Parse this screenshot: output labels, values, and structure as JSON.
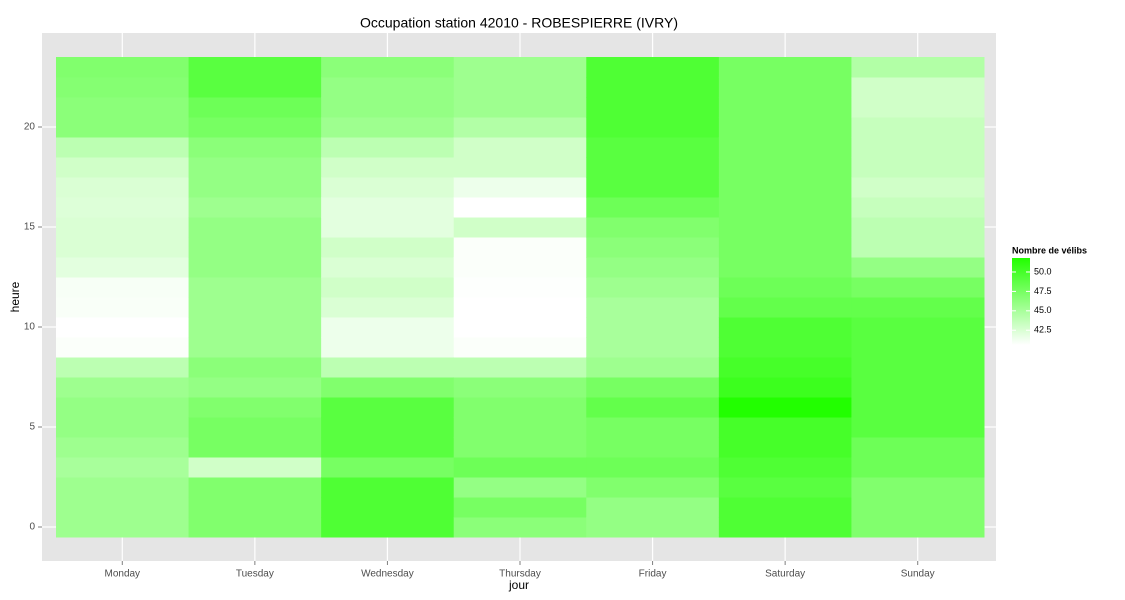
{
  "chart_data": {
    "type": "heatmap",
    "title": "Occupation station 42010 - ROBESPIERRE (IVRY)",
    "x_label": "jour",
    "y_label": "heure",
    "categories": [
      "Monday",
      "Tuesday",
      "Wednesday",
      "Thursday",
      "Friday",
      "Saturday",
      "Sunday"
    ],
    "y": [
      0,
      1,
      2,
      3,
      4,
      5,
      6,
      7,
      8,
      9,
      10,
      11,
      12,
      13,
      14,
      15,
      16,
      17,
      18,
      19,
      20,
      21,
      22,
      23
    ],
    "values": [
      [
        45.5,
        45.5,
        45.5,
        45,
        45.5,
        46,
        46,
        45.5,
        44,
        40.8,
        40.6,
        40.9,
        41,
        42,
        42.5,
        42.5,
        42.3,
        42.5,
        43,
        44,
        46.5,
        46.5,
        46.8,
        47
      ],
      [
        47,
        47,
        47,
        43,
        47.5,
        47.5,
        47,
        46,
        46.5,
        45.5,
        45.5,
        45.5,
        45.5,
        46,
        46,
        46,
        45.5,
        46,
        46,
        46.5,
        47.5,
        48,
        49,
        49
      ],
      [
        49.5,
        49.5,
        49.5,
        47.5,
        49,
        49,
        49,
        47,
        44,
        41.5,
        41.5,
        42.5,
        43,
        42.5,
        43,
        42,
        42,
        42.5,
        43,
        44,
        45.5,
        46,
        46,
        46.5
      ],
      [
        46.5,
        47.5,
        46,
        48,
        47,
        47,
        47,
        46.5,
        44,
        40.8,
        40.6,
        40.6,
        40.7,
        40.8,
        40.8,
        43,
        40.6,
        41.5,
        43,
        43,
        44.5,
        45.5,
        45.5,
        45.5
      ],
      [
        46,
        46,
        47,
        48,
        47.5,
        47.5,
        48.5,
        47.5,
        45.5,
        45,
        45,
        45,
        45.5,
        46,
        46.5,
        47,
        48,
        49,
        49,
        49,
        49.5,
        49.5,
        49.5,
        49.5
      ],
      [
        49.5,
        49.5,
        49,
        49.5,
        50,
        50,
        51.8,
        50.5,
        50,
        49.5,
        49.5,
        48.5,
        48,
        47.5,
        47.5,
        47.5,
        47.5,
        47.5,
        47.5,
        47.5,
        47.5,
        47.5,
        47.5,
        47.5
      ],
      [
        47,
        47,
        47,
        48,
        48,
        49,
        49,
        49,
        49,
        49,
        49,
        48.5,
        47.5,
        46,
        44,
        44,
        43.5,
        43,
        43.5,
        43.5,
        43.5,
        43,
        43,
        44.5
      ]
    ],
    "ylim": [
      -1.7,
      24.7
    ],
    "yticks": [
      0,
      5,
      10,
      15,
      20
    ],
    "grid": true,
    "color_low": "#ffffff",
    "color_high": "#22ff00",
    "legend_title": "Nombre de vélibs",
    "legend_ticks": [
      42.5,
      47.5,
      45.0,
      50.0
    ]
  }
}
